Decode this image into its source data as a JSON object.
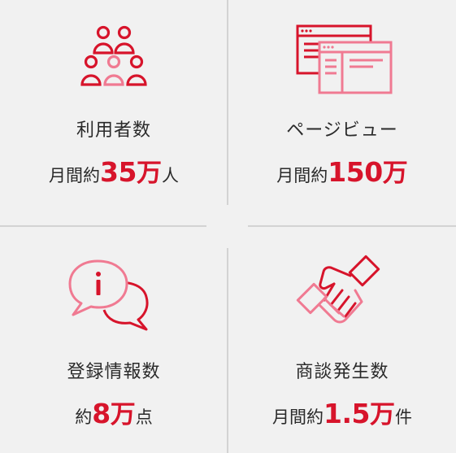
{
  "colors": {
    "accent": "#d7142b",
    "accent_light": "#f07a92",
    "background": "#f1f1f1",
    "divider": "#d3d3d3"
  },
  "stats": [
    {
      "icon": "users-icon",
      "label": "利用者数",
      "prefix": "月間約",
      "number": "35",
      "unit": "万",
      "suffix": "人"
    },
    {
      "icon": "browser-windows-icon",
      "label": "ページビュー",
      "prefix": "月間約",
      "number": "150",
      "unit": "万",
      "suffix": ""
    },
    {
      "icon": "info-chat-icon",
      "label": "登録情報数",
      "prefix": "約",
      "number": "8",
      "unit": "万",
      "suffix": "点"
    },
    {
      "icon": "handshake-icon",
      "label": "商談発生数",
      "prefix": "月間約",
      "number": "1.5",
      "unit": "万",
      "suffix": "件"
    }
  ]
}
